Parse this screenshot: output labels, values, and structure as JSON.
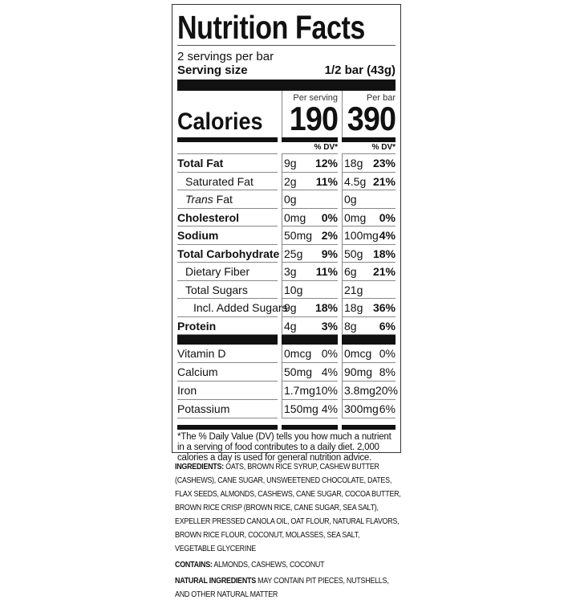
{
  "title": "Nutrition Facts",
  "servings": "2 servings per bar",
  "serving_size_label": "Serving size",
  "serving_size_value": "1/2 bar (43g)",
  "calories_label": "Calories",
  "col1_header": "Per serving",
  "col2_header": "Per bar",
  "calories_serving": "190",
  "calories_bar": "390",
  "dv_header": "% DV*",
  "nutrients": [
    {
      "name": "Total Fat",
      "bold": true,
      "indent": 0,
      "a": "9g",
      "ap": "12%",
      "b": "18g",
      "bp": "23%"
    },
    {
      "name": "Saturated Fat",
      "indent": 1,
      "a": "2g",
      "ap": "11%",
      "b": "4.5g",
      "bp": "21%"
    },
    {
      "name": "Trans Fat",
      "italic": "Trans",
      "indent": 1,
      "a": "0g",
      "ap": "",
      "b": "0g",
      "bp": ""
    },
    {
      "name": "Cholesterol",
      "bold": true,
      "indent": 0,
      "a": "0mg",
      "ap": "0%",
      "b": "0mg",
      "bp": "0%"
    },
    {
      "name": "Sodium",
      "bold": true,
      "indent": 0,
      "a": "50mg",
      "ap": "2%",
      "b": "100mg",
      "bp": "4%"
    },
    {
      "name": "Total Carbohydrate",
      "bold": true,
      "indent": 0,
      "a": "25g",
      "ap": "9%",
      "b": "50g",
      "bp": "18%"
    },
    {
      "name": "Dietary Fiber",
      "indent": 1,
      "a": "3g",
      "ap": "11%",
      "b": "6g",
      "bp": "21%"
    },
    {
      "name": "Total Sugars",
      "indent": 1,
      "a": "10g",
      "ap": "",
      "b": "21g",
      "bp": ""
    },
    {
      "name": "Incl. Added Sugars",
      "indent": 2,
      "a": "9g",
      "ap": "18%",
      "b": "18g",
      "bp": "36%"
    },
    {
      "name": "Protein",
      "bold": true,
      "indent": 0,
      "a": "4g",
      "ap": "3%",
      "b": "8g",
      "bp": "6%"
    }
  ],
  "vitamins": [
    {
      "name": "Vitamin D",
      "a": "0mcg",
      "ap": "0%",
      "b": "0mcg",
      "bp": "0%"
    },
    {
      "name": "Calcium",
      "a": "50mg",
      "ap": "4%",
      "b": "90mg",
      "bp": "8%"
    },
    {
      "name": "Iron",
      "a": "1.7mg",
      "ap": "10%",
      "b": "3.8mg",
      "bp": "20%"
    },
    {
      "name": "Potassium",
      "a": "150mg",
      "ap": "4%",
      "b": "300mg",
      "bp": "6%"
    }
  ],
  "footnote": "*The % Daily Value (DV) tells you how much a nutrient in a serving of food contributes to a daily diet. 2,000 calories a day is used for general nutrition advice.",
  "ingredients_label": "INGREDIENTS:",
  "ingredients": "OATS, BROWN RICE SYRUP, CASHEW BUTTER (CASHEWS), CANE SUGAR, UNSWEETENED CHOCOLATE, DATES, FLAX SEEDS, ALMONDS, CASHEWS, CANE SUGAR, COCOA BUTTER, BROWN RICE CRISP (BROWN RICE, CANE SUGAR, SEA SALT), EXPELLER PRESSED CANOLA OIL, OAT FLOUR, NATURAL FLAVORS, BROWN RICE FLOUR, COCONUT, MOLASSES, SEA SALT, VEGETABLE GLYCERINE",
  "contains_label": "CONTAINS:",
  "contains": "ALMONDS, CASHEWS, COCONUT",
  "natural_label": "NATURAL INGREDIENTS",
  "natural": "MAY CONTAIN PIT PIECES, NUTSHELLS, AND OTHER NATURAL MATTER"
}
